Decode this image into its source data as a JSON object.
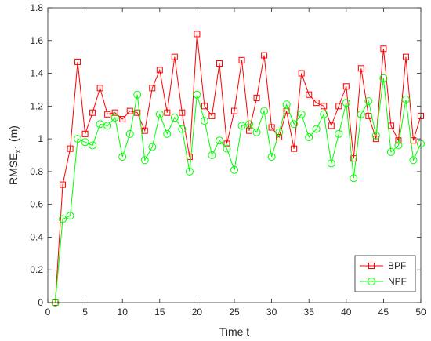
{
  "chart_data": {
    "type": "line",
    "xlabel": "Time t",
    "ylabel_main": "RMSE",
    "ylabel_sub": "x1",
    "ylabel_unit": " (m)",
    "xlim": [
      0,
      50
    ],
    "ylim": [
      0,
      1.8
    ],
    "xticks": [
      0,
      5,
      10,
      15,
      20,
      25,
      30,
      35,
      40,
      45,
      50
    ],
    "yticks": [
      0,
      0.2,
      0.4,
      0.6,
      0.8,
      1,
      1.2,
      1.4,
      1.6,
      1.8
    ],
    "grid": false,
    "legend_position": "bottom-right",
    "x": [
      1,
      2,
      3,
      4,
      5,
      6,
      7,
      8,
      9,
      10,
      11,
      12,
      13,
      14,
      15,
      16,
      17,
      18,
      19,
      20,
      21,
      22,
      23,
      24,
      25,
      26,
      27,
      28,
      29,
      30,
      31,
      32,
      33,
      34,
      35,
      36,
      37,
      38,
      39,
      40,
      41,
      42,
      43,
      44,
      45,
      46,
      47,
      48,
      49,
      50
    ],
    "series": [
      {
        "name": "BPF",
        "color": "#ff0000",
        "marker": "square",
        "values": [
          0,
          0.72,
          0.94,
          1.47,
          1.03,
          1.16,
          1.31,
          1.15,
          1.16,
          1.12,
          1.17,
          1.16,
          1.05,
          1.31,
          1.42,
          1.16,
          1.5,
          1.16,
          0.89,
          1.64,
          1.2,
          1.14,
          1.46,
          0.97,
          1.17,
          1.48,
          1.05,
          1.25,
          1.51,
          1.07,
          1.01,
          1.17,
          0.94,
          1.4,
          1.27,
          1.22,
          1.2,
          1.08,
          1.2,
          1.32,
          0.88,
          1.43,
          1.14,
          1.0,
          1.55,
          1.08,
          0.99,
          1.5,
          0.99,
          1.14
        ]
      },
      {
        "name": "NPF",
        "color": "#00ff00",
        "marker": "circle",
        "values": [
          0,
          0.51,
          0.53,
          1.0,
          0.98,
          0.96,
          1.09,
          1.08,
          1.13,
          0.89,
          1.03,
          1.27,
          0.87,
          0.95,
          1.15,
          1.03,
          1.13,
          1.06,
          0.8,
          1.27,
          1.11,
          0.9,
          0.99,
          0.94,
          0.81,
          1.08,
          1.09,
          1.04,
          1.17,
          0.89,
          1.04,
          1.21,
          1.09,
          1.15,
          1.01,
          1.06,
          1.15,
          0.85,
          1.03,
          1.22,
          0.76,
          1.15,
          1.23,
          1.02,
          1.37,
          0.92,
          0.96,
          1.24,
          0.87,
          0.97
        ]
      }
    ]
  }
}
